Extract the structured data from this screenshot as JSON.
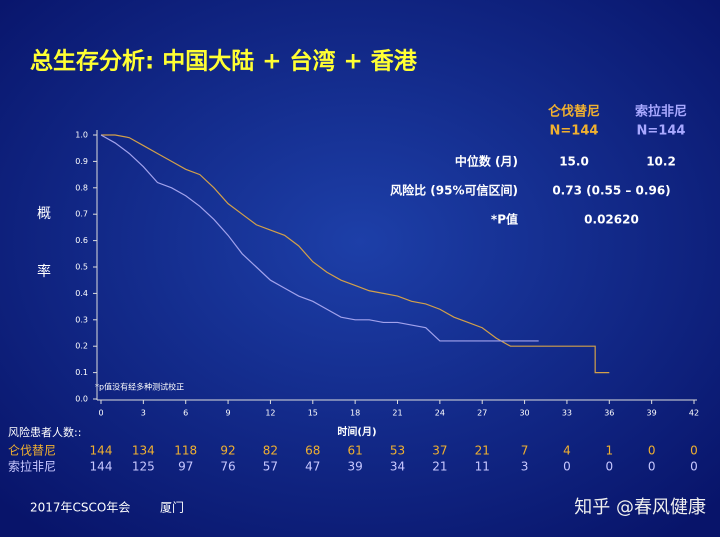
{
  "title": "总生存分析: 中国大陆 + 台湾 + 香港",
  "footer": [
    "2017年CSCO年会",
    "厦门"
  ],
  "watermark": "知乎 @春风健康",
  "chart_data": {
    "type": "line",
    "xlabel": "时间(月)",
    "ylabel": [
      "概",
      "率"
    ],
    "footnote": "*p值没有经多种测试校正",
    "xlim": [
      0,
      42
    ],
    "xticks": [
      0,
      3,
      6,
      9,
      12,
      15,
      18,
      21,
      24,
      27,
      30,
      33,
      36,
      39,
      42
    ],
    "ylim": [
      0,
      1
    ],
    "yticks": [
      {
        "value": 0,
        "label": "0.0"
      },
      0.1,
      0.2,
      0.3,
      0.4,
      0.5,
      0.6,
      0.7,
      0.8,
      0.9,
      {
        "value": 1,
        "label": "1.0"
      }
    ],
    "series": [
      {
        "name": "仑伐替尼",
        "n": "N=144",
        "color": "#d2a04a",
        "x": [
          0,
          1,
          2,
          3,
          4,
          5,
          6,
          7,
          8,
          9,
          10,
          11,
          12,
          13,
          14,
          15,
          16,
          17,
          18,
          19,
          20,
          21,
          22,
          23,
          24,
          25,
          26,
          27,
          28,
          29,
          32,
          35,
          35,
          36
        ],
        "values": [
          1.0,
          1.0,
          0.99,
          0.96,
          0.93,
          0.9,
          0.87,
          0.85,
          0.8,
          0.74,
          0.7,
          0.66,
          0.64,
          0.62,
          0.58,
          0.52,
          0.48,
          0.45,
          0.43,
          0.41,
          0.4,
          0.39,
          0.37,
          0.36,
          0.34,
          0.31,
          0.29,
          0.27,
          0.23,
          0.2,
          0.2,
          0.2,
          0.1,
          0.1
        ],
        "at_risk": [
          144,
          134,
          118,
          92,
          82,
          68,
          61,
          53,
          37,
          21,
          7,
          4,
          1,
          0,
          0
        ]
      },
      {
        "name": "索拉非尼",
        "n": "N=144",
        "color": "#a2a2ec",
        "x": [
          0,
          1,
          2,
          3,
          4,
          5,
          6,
          7,
          8,
          9,
          10,
          11,
          12,
          13,
          14,
          15,
          16,
          17,
          18,
          19,
          20,
          21,
          22,
          23,
          24,
          27,
          29,
          31
        ],
        "values": [
          1.0,
          0.97,
          0.93,
          0.88,
          0.82,
          0.8,
          0.77,
          0.73,
          0.68,
          0.62,
          0.55,
          0.5,
          0.45,
          0.42,
          0.39,
          0.37,
          0.34,
          0.31,
          0.3,
          0.3,
          0.29,
          0.29,
          0.28,
          0.27,
          0.22,
          0.22,
          0.22,
          0.22
        ],
        "at_risk": [
          144,
          125,
          97,
          76,
          57,
          47,
          39,
          34,
          21,
          11,
          3,
          0,
          0,
          0,
          0
        ]
      }
    ],
    "at_risk_title": "风险患者人数::",
    "stats": [
      {
        "label": "中位数 (月)",
        "values": [
          "15.0",
          "10.2"
        ]
      },
      {
        "label": "风险比 (95%可信区间)",
        "values": [
          "0.73 (0.55 – 0.96)"
        ]
      },
      {
        "label": "*P值",
        "values": [
          "0.02620"
        ]
      }
    ]
  }
}
